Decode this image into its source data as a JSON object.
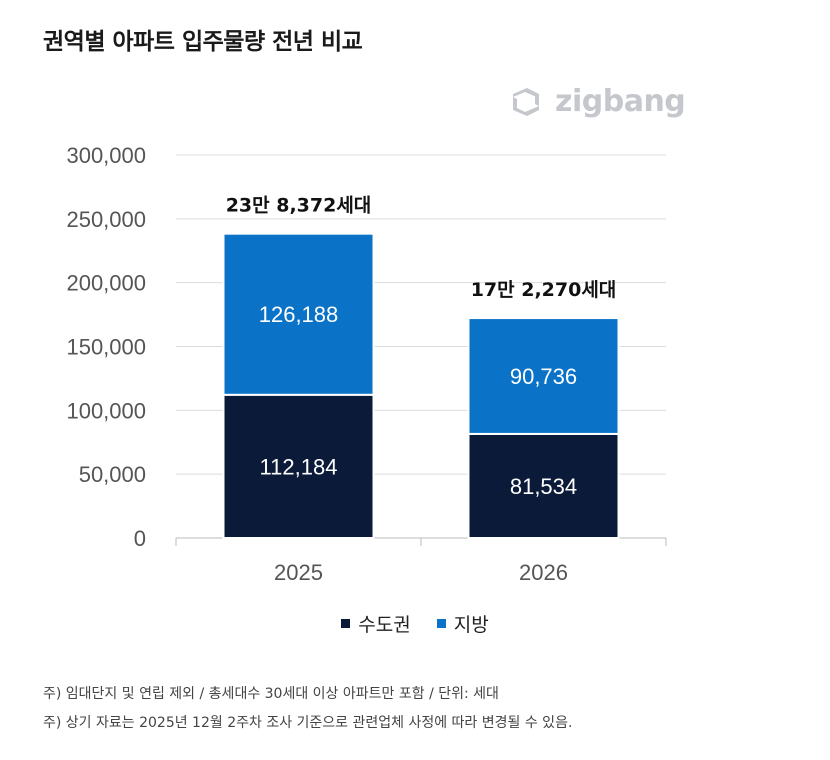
{
  "title": "권역별 아파트 입주물량 전년 비교",
  "brand": {
    "name": "zigbang",
    "icon": "zigbang-logo-icon"
  },
  "colors": {
    "capital": "#0b1a38",
    "regional": "#0a72c7",
    "grid": "#dcdcdc",
    "axis_text": "#555555"
  },
  "chart_data": {
    "type": "bar",
    "stacked": true,
    "categories": [
      "2025",
      "2026"
    ],
    "series": [
      {
        "name": "수도권",
        "values": [
          112184,
          81534
        ],
        "labels": [
          "112,184",
          "81,534"
        ]
      },
      {
        "name": "지방",
        "values": [
          126188,
          90736
        ],
        "labels": [
          "126,188",
          "90,736"
        ]
      }
    ],
    "totals": [
      "23만 8,372세대",
      "17만 2,270세대"
    ],
    "ylim": [
      0,
      300000
    ],
    "yticks": [
      "0",
      "50,000",
      "100,000",
      "150,000",
      "200,000",
      "250,000",
      "300,000"
    ],
    "ytick_values": [
      0,
      50000,
      100000,
      150000,
      200000,
      250000,
      300000
    ],
    "grid": true,
    "legend_position": "bottom"
  },
  "notes": [
    "주) 임대단지 및 연립 제외 / 총세대수 30세대 이상 아파트만 포함 / 단위: 세대",
    "주) 상기 자료는 2025년 12월 2주차 조사 기준으로 관련업체 사정에 따라 변경될 수 있음."
  ]
}
